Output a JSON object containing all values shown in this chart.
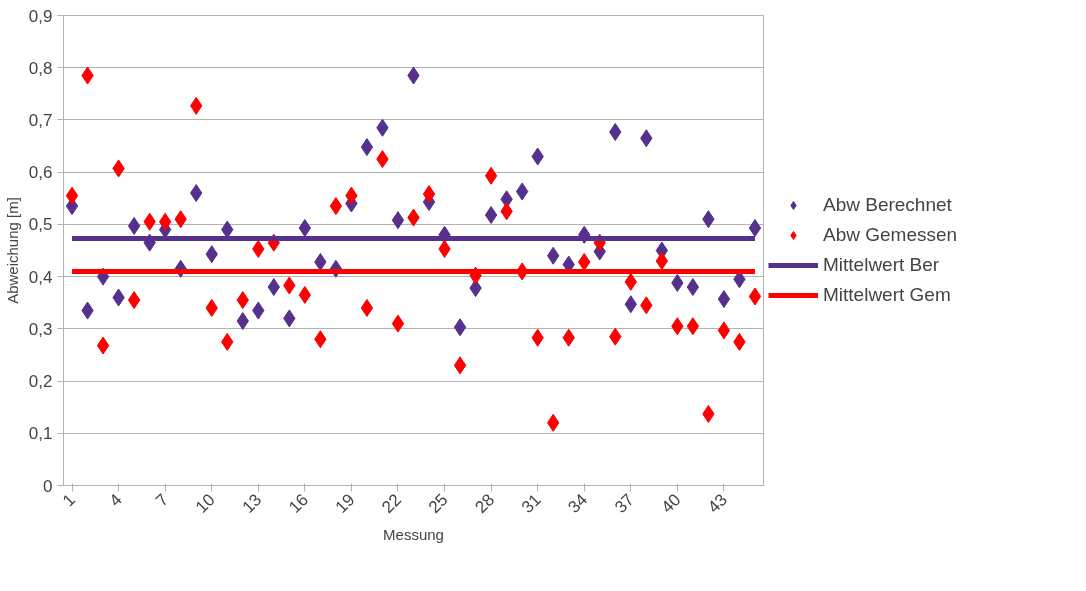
{
  "chart_data": {
    "type": "scatter",
    "xlabel": "Messung",
    "ylabel": "Abweichung [m]",
    "categories": [
      "1",
      null,
      null,
      "4",
      null,
      null,
      "7",
      null,
      null,
      "10",
      null,
      null,
      "13",
      null,
      null,
      "16",
      null,
      null,
      "19",
      null,
      null,
      "22",
      null,
      null,
      "25",
      null,
      null,
      "28",
      null,
      null,
      "31",
      null,
      null,
      "34",
      null,
      null,
      "37",
      null,
      null,
      "40",
      null,
      null,
      "43",
      null,
      null
    ],
    "ylim": [
      0,
      0.9
    ],
    "yticks": [
      {
        "value": 0,
        "label": "0"
      },
      {
        "value": 0.1,
        "label": "0,1"
      },
      {
        "value": 0.2,
        "label": "0,2"
      },
      {
        "value": 0.3,
        "label": "0,3"
      },
      {
        "value": 0.4,
        "label": "0,4"
      },
      {
        "value": 0.5,
        "label": "0,5"
      },
      {
        "value": 0.6,
        "label": "0,6"
      },
      {
        "value": 0.7,
        "label": "0,7"
      },
      {
        "value": 0.8,
        "label": "0,8"
      },
      {
        "value": 0.9,
        "label": "0,9"
      }
    ],
    "grid": "y",
    "legend": "right",
    "series": [
      {
        "name": "Abw Berechnet",
        "marker": "diamond",
        "color": "#55308d",
        "values": [
          0.535,
          0.335,
          0.4,
          0.36,
          0.497,
          0.465,
          0.49,
          0.415,
          0.56,
          0.443,
          0.49,
          0.315,
          0.335,
          0.38,
          0.32,
          0.493,
          0.428,
          0.415,
          0.54,
          0.648,
          0.685,
          0.508,
          0.785,
          0.543,
          0.48,
          0.303,
          0.378,
          0.518,
          0.548,
          0.563,
          0.63,
          0.44,
          0.423,
          0.48,
          0.448,
          0.677,
          0.347,
          0.665,
          0.45,
          0.388,
          0.38,
          0.51,
          0.357,
          0.395,
          0.493
        ]
      },
      {
        "name": "Abw Gemessen",
        "marker": "diamond",
        "color": "#ff0000",
        "values": [
          0.555,
          0.785,
          0.268,
          0.607,
          0.355,
          0.505,
          0.505,
          0.51,
          0.727,
          0.34,
          0.275,
          0.355,
          0.453,
          0.465,
          0.383,
          0.365,
          0.28,
          0.535,
          0.555,
          0.34,
          0.625,
          0.31,
          0.513,
          0.558,
          0.453,
          0.23,
          0.402,
          0.593,
          0.525,
          0.41,
          0.283,
          0.12,
          0.283,
          0.428,
          0.465,
          0.285,
          0.39,
          0.345,
          0.43,
          0.305,
          0.305,
          0.137,
          0.297,
          0.275,
          0.362
        ]
      },
      {
        "name": "Mittelwert Ber",
        "type": "line",
        "color": "#55308d",
        "values": [
          0.473,
          0.473,
          0.473,
          0.473,
          0.473,
          0.473,
          0.473,
          0.473,
          0.473,
          0.473,
          0.473,
          0.473,
          0.473,
          0.473,
          0.473,
          0.473,
          0.473,
          0.473,
          0.473,
          0.473,
          0.473,
          0.473,
          0.473,
          0.473,
          0.473,
          0.473,
          0.473,
          0.473,
          0.473,
          0.473,
          0.473,
          0.473,
          0.473,
          0.473,
          0.473,
          0.473,
          0.473,
          0.473,
          0.473,
          0.473,
          0.473,
          0.473,
          0.473,
          0.473,
          0.473
        ]
      },
      {
        "name": "Mittelwert Gem",
        "type": "line",
        "color": "#ff0000",
        "values": [
          0.41,
          0.41,
          0.41,
          0.41,
          0.41,
          0.41,
          0.41,
          0.41,
          0.41,
          0.41,
          0.41,
          0.41,
          0.41,
          0.41,
          0.41,
          0.41,
          0.41,
          0.41,
          0.41,
          0.41,
          0.41,
          0.41,
          0.41,
          0.41,
          0.41,
          0.41,
          0.41,
          0.41,
          0.41,
          0.41,
          0.41,
          0.41,
          0.41,
          0.41,
          0.41,
          0.41,
          0.41,
          0.41,
          0.41,
          0.41,
          0.41,
          0.41,
          0.41,
          0.41,
          0.41
        ]
      }
    ]
  }
}
